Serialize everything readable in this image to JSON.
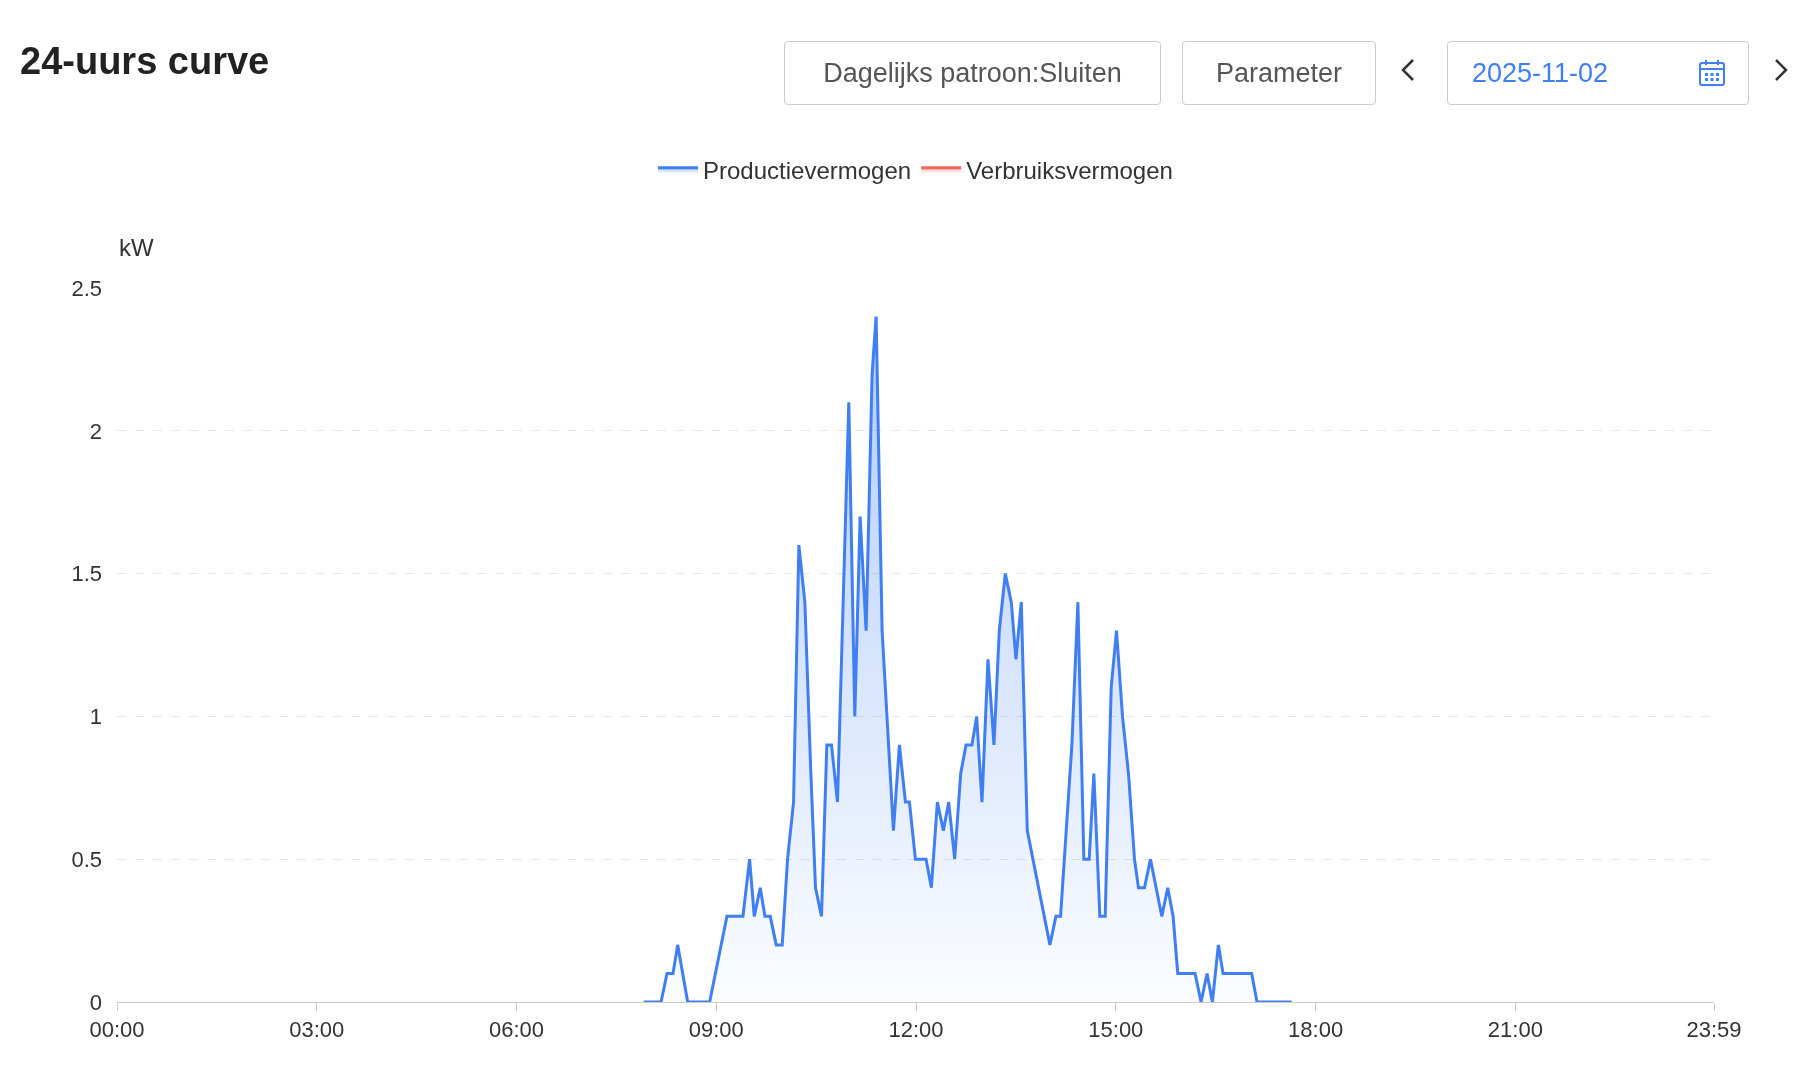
{
  "chart_data": {
    "type": "area",
    "title": "24-uurs curve",
    "ylabel": "kW",
    "annotations": [
      "Dagelijks patroon:Sluiten",
      "Parameter",
      "2025-11-02"
    ],
    "xlim": [
      0,
      23.983
    ],
    "xticks": [
      {
        "value": 0,
        "label": "00:00"
      },
      {
        "value": 3,
        "label": "03:00"
      },
      {
        "value": 6,
        "label": "06:00"
      },
      {
        "value": 9,
        "label": "09:00"
      },
      {
        "value": 12,
        "label": "12:00"
      },
      {
        "value": 15,
        "label": "15:00"
      },
      {
        "value": 18,
        "label": "18:00"
      },
      {
        "value": 21,
        "label": "21:00"
      },
      {
        "value": 23.983,
        "label": "23:59"
      }
    ],
    "ylim": [
      0,
      2.5
    ],
    "yticks": [
      0,
      0.5,
      1,
      1.5,
      2,
      2.5
    ],
    "grid": "y",
    "legend": "top",
    "marker": "none",
    "line_style": "solid",
    "series": [
      {
        "name": "Productievermogen",
        "color": "#3f7ff2",
        "x": [
          7.91,
          8.17,
          8.26,
          8.35,
          8.42,
          8.57,
          8.9,
          9.16,
          9.4,
          9.5,
          9.57,
          9.66,
          9.73,
          9.81,
          9.9,
          9.99,
          10.07,
          10.16,
          10.24,
          10.33,
          10.42,
          10.49,
          10.58,
          10.66,
          10.73,
          10.82,
          10.99,
          11.08,
          11.16,
          11.25,
          11.34,
          11.4,
          11.49,
          11.66,
          11.75,
          11.84,
          11.9,
          11.99,
          12.15,
          12.23,
          12.32,
          12.41,
          12.49,
          12.58,
          12.67,
          12.75,
          12.84,
          12.91,
          12.99,
          13.08,
          13.17,
          13.25,
          13.34,
          13.43,
          13.5,
          13.58,
          13.67,
          14.01,
          14.1,
          14.17,
          14.34,
          14.43,
          14.52,
          14.6,
          14.67,
          14.76,
          14.84,
          14.93,
          15.01,
          15.1,
          15.19,
          15.28,
          15.34,
          15.43,
          15.52,
          15.69,
          15.78,
          15.86,
          15.93,
          16.19,
          16.28,
          16.37,
          16.45,
          16.54,
          16.61,
          17.04,
          17.12,
          17.64
        ],
        "values": [
          0,
          0,
          0.1,
          0.1,
          0.2,
          0,
          0,
          0.3,
          0.3,
          0.5,
          0.3,
          0.4,
          0.3,
          0.3,
          0.2,
          0.2,
          0.5,
          0.7,
          1.6,
          1.4,
          0.8,
          0.4,
          0.3,
          0.9,
          0.9,
          0.7,
          2.1,
          1.0,
          1.7,
          1.3,
          2.2,
          2.4,
          1.3,
          0.6,
          0.9,
          0.7,
          0.7,
          0.5,
          0.5,
          0.4,
          0.7,
          0.6,
          0.7,
          0.5,
          0.8,
          0.9,
          0.9,
          1.0,
          0.7,
          1.2,
          0.9,
          1.3,
          1.5,
          1.4,
          1.2,
          1.4,
          0.6,
          0.2,
          0.3,
          0.3,
          0.9,
          1.4,
          0.5,
          0.5,
          0.8,
          0.3,
          0.3,
          1.1,
          1.3,
          1.0,
          0.8,
          0.5,
          0.4,
          0.4,
          0.5,
          0.3,
          0.4,
          0.3,
          0.1,
          0.1,
          0,
          0.1,
          0,
          0.2,
          0.1,
          0.1,
          0,
          0
        ]
      },
      {
        "name": "Verbruiksvermogen",
        "color": "#f4665a",
        "values": [
          null
        ]
      }
    ]
  }
}
